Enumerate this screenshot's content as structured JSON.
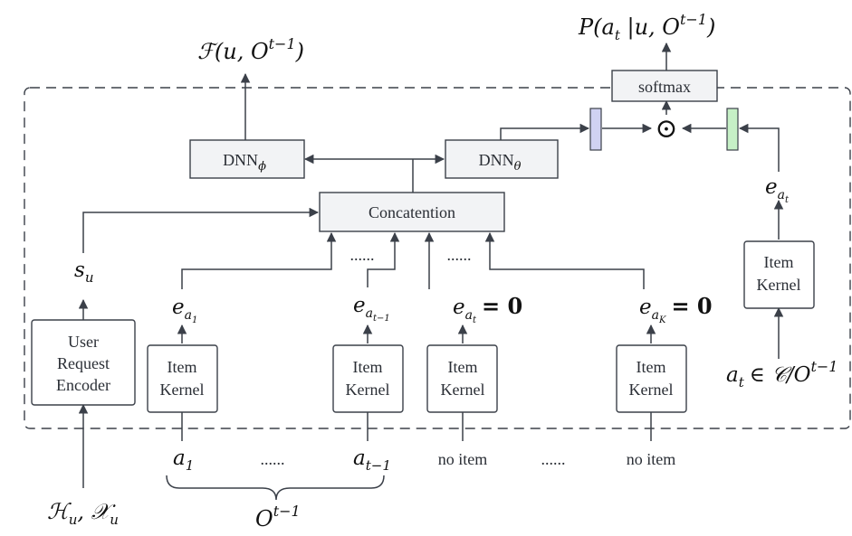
{
  "boxes": {
    "softmax": "softmax",
    "dnn_phi": "DNN",
    "dnn_phi_sub": "ϕ",
    "dnn_theta": "DNN",
    "dnn_theta_sub": "θ",
    "concat": "Concatention",
    "encoder_line1": "User",
    "encoder_line2": "Request",
    "encoder_line3": "Encoder",
    "kernel_line1": "Item",
    "kernel_line2": "Kernel"
  },
  "labels": {
    "f_out": "ℱ(u, O",
    "f_out_sup": "t−1",
    "f_out_close": ")",
    "p_out": "P(a",
    "p_out_sub": "t",
    "p_out_mid": " |u, O",
    "p_out_sup": "t−1",
    "p_out_close": ")",
    "s_u": "s",
    "s_u_sub": "u",
    "e": "e",
    "a": "a",
    "sub_1": "1",
    "sub_t": "t",
    "sub_t1": "t−1",
    "sub_K": "K",
    "zero_eq": "= 0",
    "input_h": "ℋ",
    "input_x": "𝒳",
    "input_sub": "u",
    "comma": ", ",
    "candidate_in": "∈ 𝒞/O",
    "candidate_sup": "t−1",
    "no_item": "no item",
    "dots": "......",
    "o_group": "O",
    "o_group_sup": "t−1",
    "hadamard": "⊙"
  },
  "colors": {
    "left_vector": "#d0d2f2",
    "right_vector": "#c6f0c6",
    "stroke": "#3b4049",
    "box_fill": "#f2f3f5"
  }
}
